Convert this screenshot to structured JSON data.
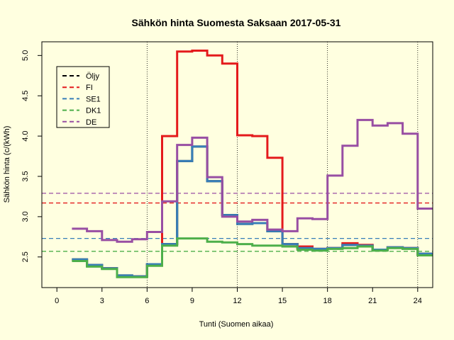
{
  "chart_data": {
    "type": "line",
    "title": "Sähkön hinta Suomesta Saksaan 2017-05-31",
    "xlabel": "Tunti (Suomen aikaa)",
    "ylabel": "Sähkön hinta (c/(kWh)",
    "xlim": [
      -1,
      25
    ],
    "ylim": [
      2.12,
      5.17
    ],
    "xticks": [
      0,
      3,
      6,
      9,
      12,
      15,
      18,
      21,
      24
    ],
    "yticks": [
      2.5,
      3.0,
      3.5,
      4.0,
      4.5,
      5.0
    ],
    "ytick_labels": [
      "2.5",
      "3.0",
      "3.5",
      "4.0",
      "4.5",
      "5.0"
    ],
    "vlines": [
      6,
      12,
      18,
      24
    ],
    "legend_position": "top-left",
    "x": [
      1,
      2,
      3,
      4,
      5,
      6,
      7,
      8,
      9,
      10,
      11,
      12,
      13,
      14,
      15,
      16,
      17,
      18,
      19,
      20,
      21,
      22,
      23,
      24,
      25
    ],
    "series": [
      {
        "name": "Öljy",
        "color": "#000000",
        "values": [
          2.47,
          2.4,
          2.36,
          2.27,
          2.26,
          2.41,
          2.66,
          3.69,
          3.87,
          3.44,
          3.02,
          2.91,
          2.92,
          2.82,
          2.66,
          2.61,
          2.6,
          2.61,
          2.65,
          2.64,
          2.59,
          2.62,
          2.61,
          2.54,
          2.54
        ]
      },
      {
        "name": "FI",
        "color": "#e41a1c",
        "values": [
          2.46,
          2.39,
          2.36,
          2.26,
          2.26,
          2.4,
          4.0,
          5.05,
          5.06,
          5.0,
          4.9,
          4.01,
          4.0,
          3.73,
          2.66,
          2.63,
          2.6,
          2.61,
          2.67,
          2.65,
          2.59,
          2.62,
          2.61,
          2.53,
          2.53
        ]
      },
      {
        "name": "SE1",
        "color": "#377eb8",
        "values": [
          2.47,
          2.4,
          2.36,
          2.27,
          2.26,
          2.41,
          2.66,
          3.69,
          3.87,
          3.44,
          3.02,
          2.91,
          2.92,
          2.82,
          2.66,
          2.61,
          2.6,
          2.61,
          2.65,
          2.64,
          2.59,
          2.62,
          2.61,
          2.54,
          2.54
        ]
      },
      {
        "name": "DK1",
        "color": "#4daf4a",
        "values": [
          2.45,
          2.38,
          2.35,
          2.25,
          2.25,
          2.39,
          2.64,
          2.73,
          2.73,
          2.69,
          2.68,
          2.66,
          2.64,
          2.64,
          2.63,
          2.59,
          2.58,
          2.6,
          2.61,
          2.63,
          2.58,
          2.61,
          2.6,
          2.52,
          2.52
        ]
      },
      {
        "name": "DE",
        "color": "#984ea3",
        "values": [
          2.85,
          2.82,
          2.71,
          2.69,
          2.72,
          2.81,
          3.19,
          3.89,
          3.98,
          3.49,
          3.0,
          2.94,
          2.96,
          2.84,
          2.82,
          2.98,
          2.97,
          3.51,
          3.88,
          4.2,
          4.13,
          4.16,
          4.03,
          3.1,
          3.1
        ]
      }
    ],
    "means": [
      {
        "name": "FI",
        "color": "#e41a1c",
        "value": 3.17
      },
      {
        "name": "SE1",
        "color": "#377eb8",
        "value": 2.73
      },
      {
        "name": "DK1",
        "color": "#4daf4a",
        "value": 2.57
      },
      {
        "name": "DE",
        "color": "#984ea3",
        "value": 3.29
      }
    ]
  }
}
